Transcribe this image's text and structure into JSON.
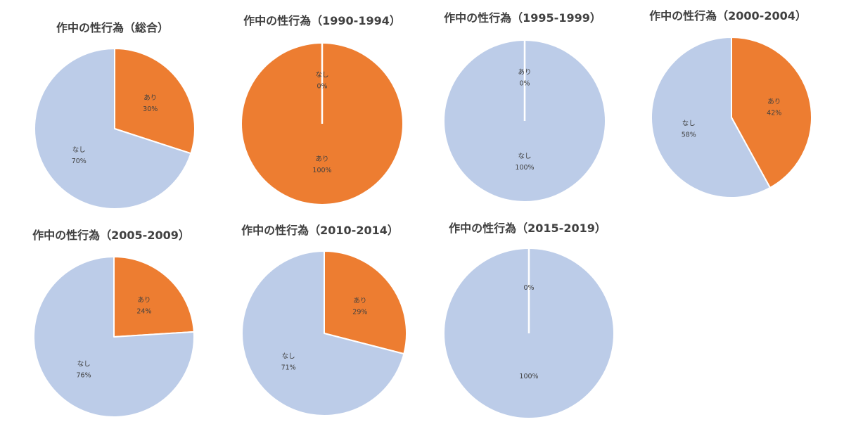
{
  "colors": {
    "ari": "#ed7d31",
    "nashi": "#bccce8",
    "separator": "#ffffff"
  },
  "chart_data": [
    {
      "type": "pie",
      "title": "作中の性行為（総合）",
      "series": [
        {
          "name": "あり",
          "value": 30,
          "label": "30%",
          "color_key": "ari"
        },
        {
          "name": "なし",
          "value": 70,
          "label": "70%",
          "color_key": "nashi"
        }
      ]
    },
    {
      "type": "pie",
      "title": "作中の性行為（1990-1994）",
      "series": [
        {
          "name": "あり",
          "value": 100,
          "label": "100%",
          "color_key": "ari"
        },
        {
          "name": "なし",
          "value": 0,
          "label": "0%",
          "color_key": "nashi"
        }
      ]
    },
    {
      "type": "pie",
      "title": "作中の性行為（1995-1999）",
      "series": [
        {
          "name": "あり",
          "value": 0,
          "label": "0%",
          "color_key": "ari"
        },
        {
          "name": "なし",
          "value": 100,
          "label": "100%",
          "color_key": "nashi"
        }
      ]
    },
    {
      "type": "pie",
      "title": "作中の性行為（2000-2004）",
      "series": [
        {
          "name": "あり",
          "value": 42,
          "label": "42%",
          "color_key": "ari"
        },
        {
          "name": "なし",
          "value": 58,
          "label": "58%",
          "color_key": "nashi"
        }
      ]
    },
    {
      "type": "pie",
      "title": "作中の性行為（2005-2009）",
      "series": [
        {
          "name": "あり",
          "value": 24,
          "label": "24%",
          "color_key": "ari"
        },
        {
          "name": "なし",
          "value": 76,
          "label": "76%",
          "color_key": "nashi"
        }
      ]
    },
    {
      "type": "pie",
      "title": "作中の性行為（2010-2014）",
      "series": [
        {
          "name": "あり",
          "value": 29,
          "label": "29%",
          "color_key": "ari"
        },
        {
          "name": "なし",
          "value": 71,
          "label": "71%",
          "color_key": "nashi"
        }
      ]
    },
    {
      "type": "pie",
      "title": "作中の性行為（2015-2019）",
      "series": [
        {
          "name": "",
          "value": 0,
          "label": "0%",
          "color_key": "ari"
        },
        {
          "name": "",
          "value": 100,
          "label": "100%",
          "color_key": "nashi"
        }
      ]
    }
  ]
}
